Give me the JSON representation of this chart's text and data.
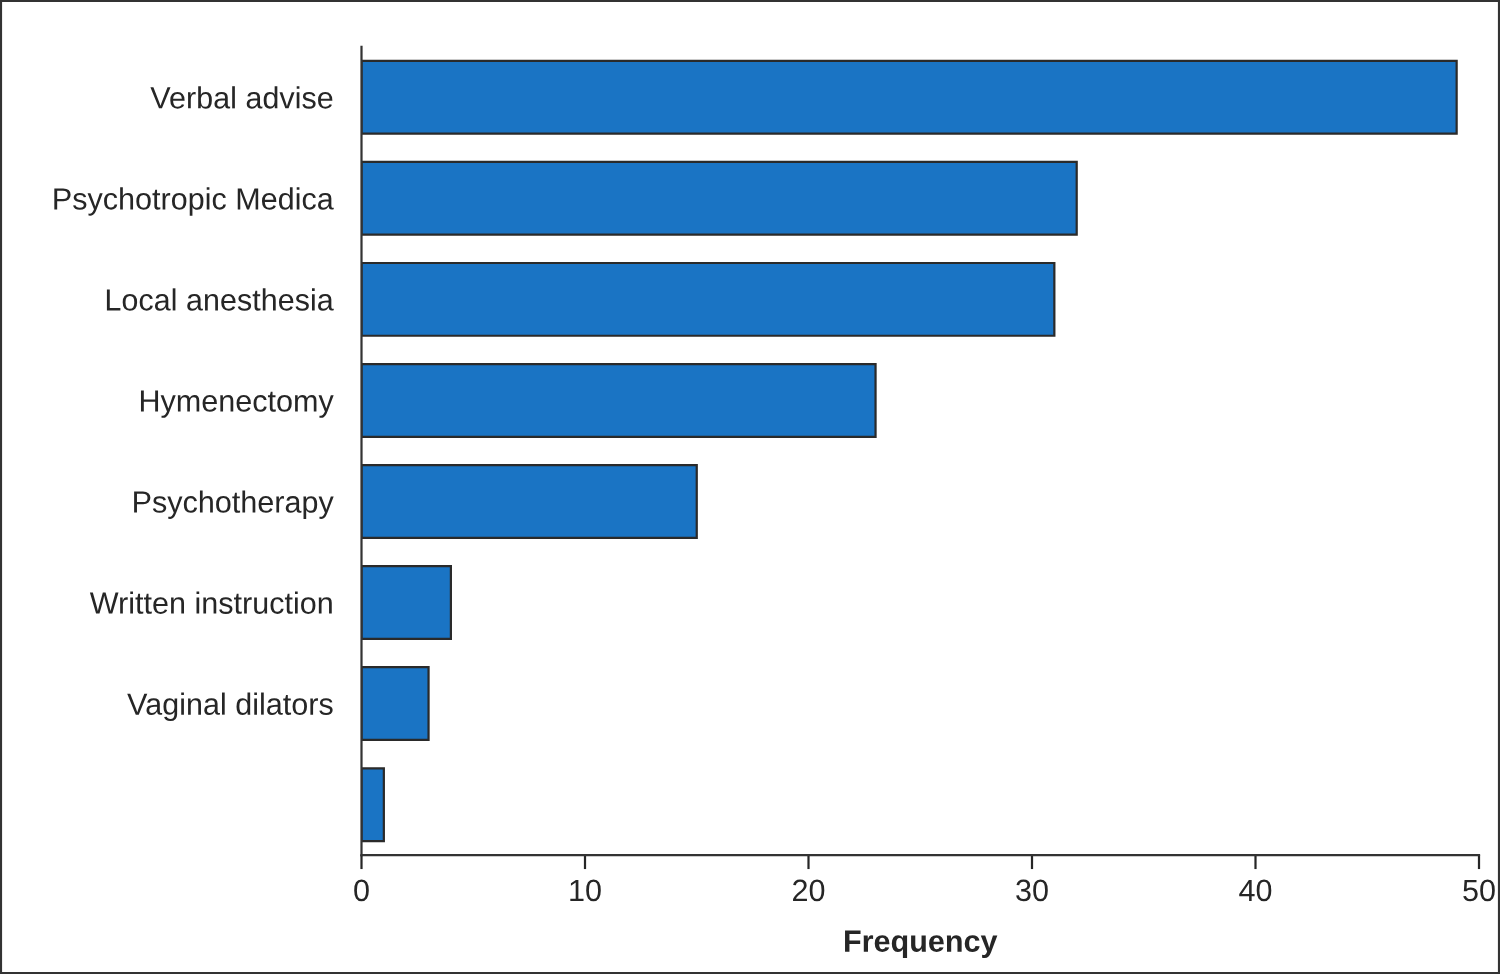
{
  "chart_data": {
    "type": "bar",
    "orientation": "horizontal",
    "xlabel": "Frequency",
    "categories": [
      "Verbal advise",
      "Psychotropic Medica",
      "Local anesthesia",
      "Hymenectomy",
      "Psychotherapy",
      "Written instruction",
      "Vaginal dilators",
      null
    ],
    "values": [
      49,
      32,
      31,
      23,
      15,
      4,
      3,
      1
    ],
    "color": "#1a74c4",
    "xlim": [
      0,
      50
    ],
    "xticks": [
      0,
      10,
      20,
      30,
      40,
      50
    ],
    "grid": false,
    "legend": false
  }
}
